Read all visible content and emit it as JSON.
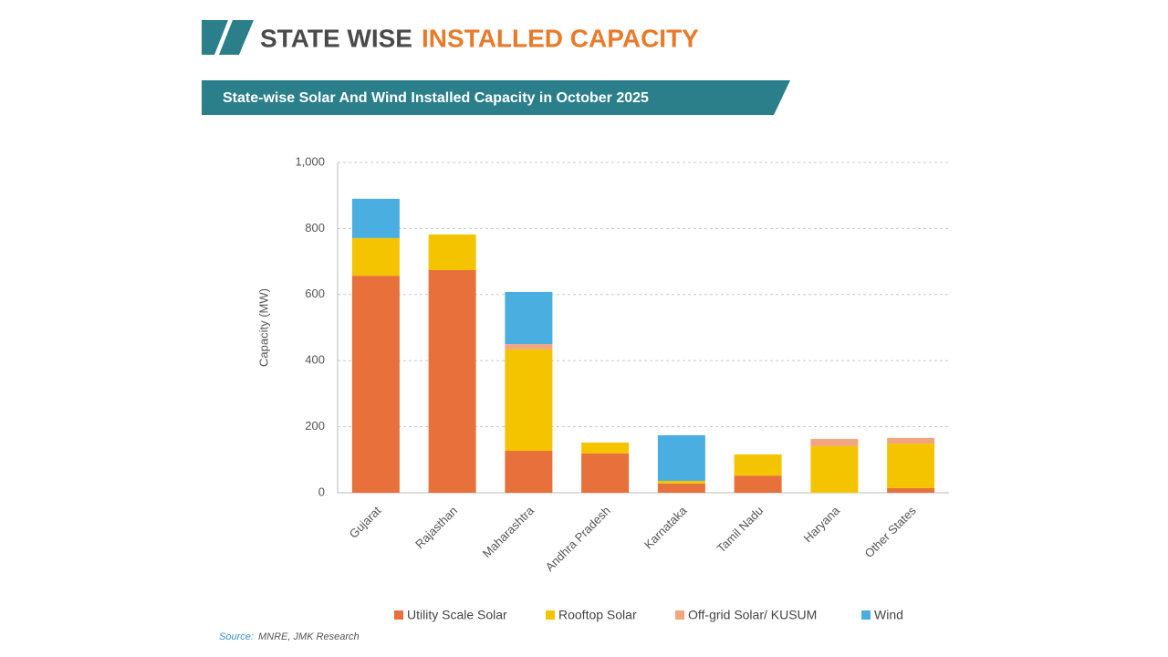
{
  "header": {
    "title_part1": "STATE WISE",
    "title_part2": "INSTALLED CAPACITY"
  },
  "chart_data": {
    "type": "stacked_bar",
    "title": "State-wise Solar And Wind Installed Capacity in October 2025",
    "y_label": "Capacity (MW)",
    "categories": [
      "Gujarat",
      "Rajasthan",
      "Maharashtra",
      "Andhra Pradesh",
      "Karnataka",
      "Tamil Nadu",
      "Haryana",
      "Other States"
    ],
    "series": [
      {
        "name": "Utility Scale Solar",
        "color": "#e8703a",
        "values": [
          657,
          674,
          127,
          119,
          28,
          52,
          0,
          14
        ]
      },
      {
        "name": "Rooftop Solar",
        "color": "#f5c400",
        "values": [
          114,
          108,
          307,
          33,
          8,
          64,
          141,
          135
        ]
      },
      {
        "name": "Off-grid Solar/ KUSUM",
        "color": "#f2a680",
        "values": [
          0,
          0,
          16,
          0,
          0,
          0,
          22,
          17
        ]
      },
      {
        "name": "Wind",
        "color": "#4aaee0",
        "values": [
          119,
          0,
          158,
          0,
          138,
          0,
          0,
          0
        ]
      }
    ],
    "ylim": [
      0,
      1000
    ],
    "yticks": [
      0,
      200,
      400,
      600,
      800,
      {
        "value": 1000,
        "label": "1,000"
      }
    ],
    "grid": true,
    "legend": "bottom"
  },
  "source": {
    "label": "Source:",
    "text": "MNRE, JMK Research"
  }
}
